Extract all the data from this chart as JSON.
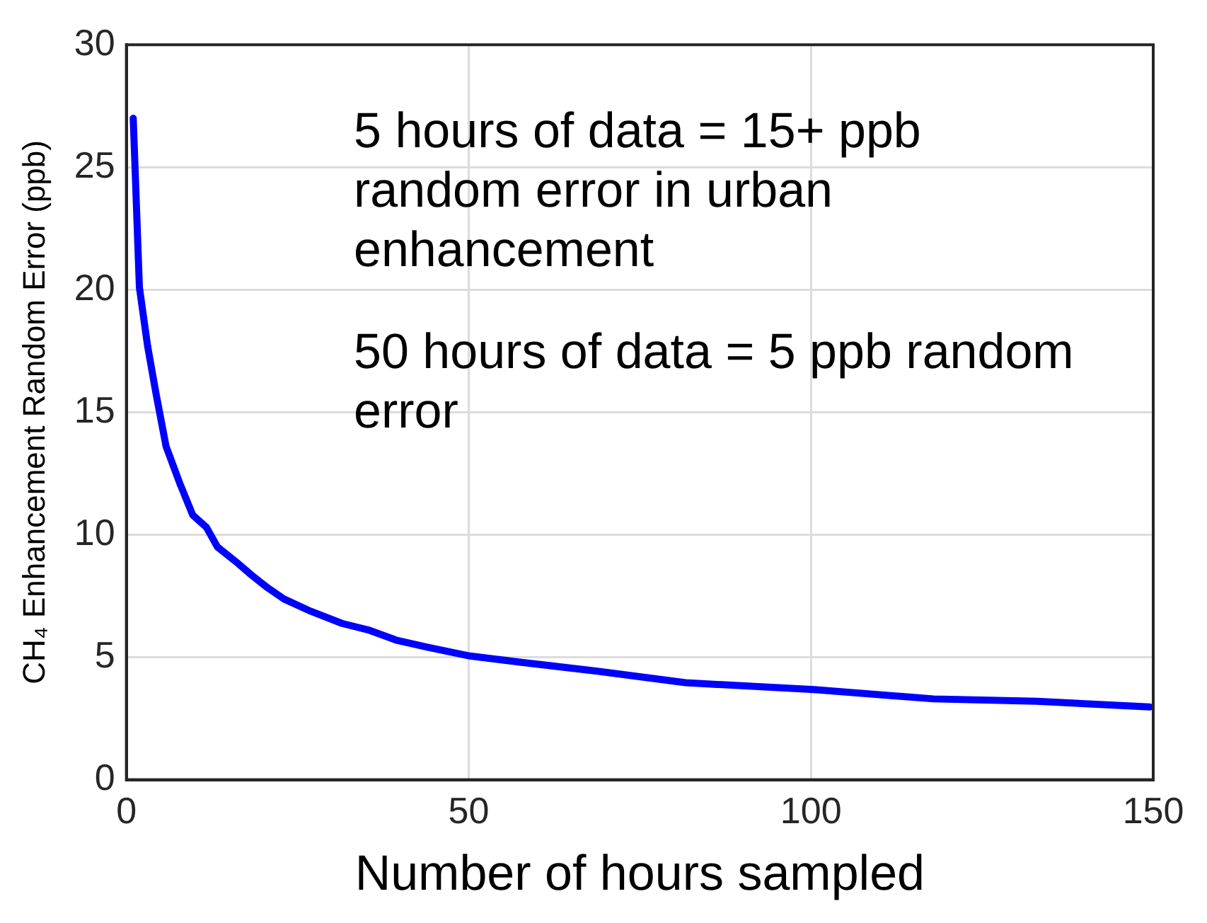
{
  "chart_data": {
    "type": "line",
    "xlabel": "Number of hours sampled",
    "ylabel": "CH₄ Enhancement Random Error (ppb)",
    "annotations": [
      "5 hours of data = 15+ ppb random error in urban enhancement",
      "50 hours of data = 5 ppb random error"
    ],
    "xlim": [
      0,
      150
    ],
    "xticks": [
      0,
      50,
      100,
      150
    ],
    "ylim": [
      0,
      30
    ],
    "yticks": [
      0,
      5,
      10,
      15,
      20,
      25,
      30
    ],
    "grid": true,
    "legend": false,
    "marker": "none",
    "line_style": "solid",
    "series": [
      {
        "color": "#0000ff",
        "x": [
          1.0,
          1.9,
          3.1,
          4.3,
          5.8,
          7.8,
          9.7,
          11.7,
          13.3,
          16.0,
          18.3,
          20.6,
          23.0,
          26.9,
          31.5,
          35.5,
          39.4,
          44.1,
          50.2,
          57.5,
          68.8,
          81.7,
          100.5,
          117.9,
          133,
          149.5
        ],
        "values": [
          27.0,
          20.1,
          17.7,
          15.8,
          13.6,
          12.1,
          10.8,
          10.3,
          9.5,
          8.9,
          8.35,
          7.84,
          7.38,
          6.88,
          6.38,
          6.1,
          5.7,
          5.4,
          5.05,
          4.8,
          4.43,
          3.96,
          3.68,
          3.3,
          3.2,
          2.97
        ]
      }
    ]
  }
}
